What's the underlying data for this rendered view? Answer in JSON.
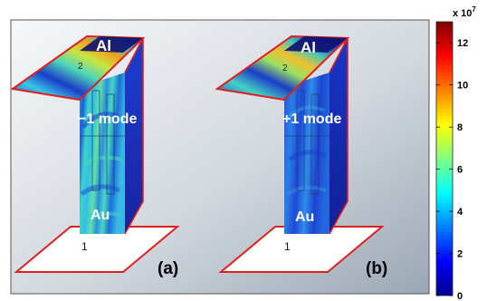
{
  "panels": [
    {
      "caption": "(a)",
      "mode_label": "−1 mode",
      "top_metal": "Al",
      "bottom_metal": "Au",
      "port_top": "2",
      "port_bottom": "1"
    },
    {
      "caption": "(b)",
      "mode_label": "+1 mode",
      "top_metal": "Al",
      "bottom_metal": "Au",
      "port_top": "2",
      "port_bottom": "1"
    }
  ],
  "colorbar": {
    "multiplier": "x 10",
    "exponent": "7",
    "ticks": [
      "12",
      "10",
      "8",
      "6",
      "4",
      "2",
      "0"
    ],
    "tick_values": [
      12,
      10,
      8,
      6,
      4,
      2,
      0
    ],
    "range": [
      0,
      13
    ],
    "colormap": "jet"
  },
  "colors": {
    "outline": "#e02020",
    "frame": "#555555",
    "background_gradient": [
      "#f4f6f8",
      "#9aa7b4"
    ]
  }
}
